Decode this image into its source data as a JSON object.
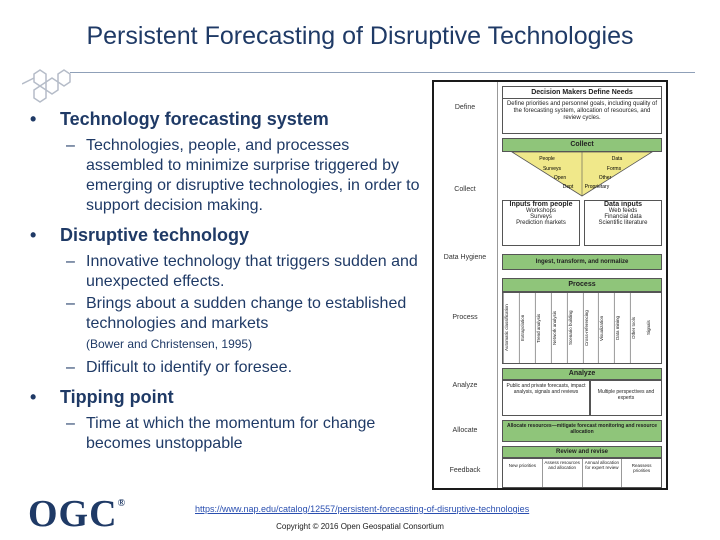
{
  "slide": {
    "title": "Persistent Forecasting of Disruptive Technologies",
    "bullets": [
      {
        "text": "Technology forecasting system"
      },
      {
        "text": "Technologies, people, and processes assembled to minimize surprise triggered by emerging or disruptive technologies, in order to support decision making."
      },
      {
        "text": "Disruptive technology"
      },
      {
        "text": "Innovative technology that triggers sudden and unexpected effects."
      },
      {
        "text": "Brings about a sudden change to established technologies and markets"
      },
      {
        "text": "(Bower and Christensen, 1995)"
      },
      {
        "text": "Difficult to identify or foresee."
      },
      {
        "text": "Tipping point"
      },
      {
        "text": "Time at which the momentum for change becomes unstoppable"
      }
    ],
    "dash": "–"
  },
  "diagram": {
    "left_labels": [
      "Define",
      "Collect",
      "Data Hygiene",
      "Process",
      "Analyze",
      "Allocate",
      "Feedback"
    ],
    "boxes": {
      "define_header": "Decision Makers Define Needs",
      "define_body": "Define priorities and personnel goals, including quality of the forecasting system, allocation of resources, and review cycles.",
      "collect": "Collect",
      "funnel": [
        "People",
        "Data",
        "Surveys",
        "Forms",
        "Open",
        "Other",
        "Dept",
        "Proprietary"
      ],
      "inputs_people": "Inputs from people",
      "inputs_people_items": [
        "Workshops",
        "Surveys",
        "Prediction markets"
      ],
      "data_inputs": "Data inputs",
      "data_inputs_items": [
        "Web feeds",
        "Financial data",
        "Scientific literature"
      ],
      "ingest": "Ingest, transform, and normalize",
      "process": "Process",
      "process_items": [
        "Automatic classification",
        "Extrapolation",
        "Trend analysis",
        "Network analysis",
        "Scenario building",
        "Cross-referencing",
        "Visualization",
        "Data mining",
        "Other tools",
        "Signals"
      ],
      "analyze": "Analyze",
      "analyze_left": "Public and private forecasts, impact analysis, signals and reviews",
      "analyze_right": "Multiple perspectives and experts",
      "allocate": "Allocate resources—mitigate forecast monitoring and resource allocation",
      "review": "Review and revise",
      "feedback": [
        "New priorities",
        "Assess resources and allocation",
        "Annual allocation for expert review",
        "Reassess priorities"
      ]
    }
  },
  "footer": {
    "logo": "OGC",
    "logo_mark": "®",
    "link": "https://www.nap.edu/catalog/12557/persistent-forecasting-of-disruptive-technologies",
    "copyright": "Copyright © 2016 Open Geospatial Consortium"
  },
  "colors": {
    "title": "#1f3a66",
    "green": "#8fc57a",
    "yellow": "#f0e88a"
  }
}
